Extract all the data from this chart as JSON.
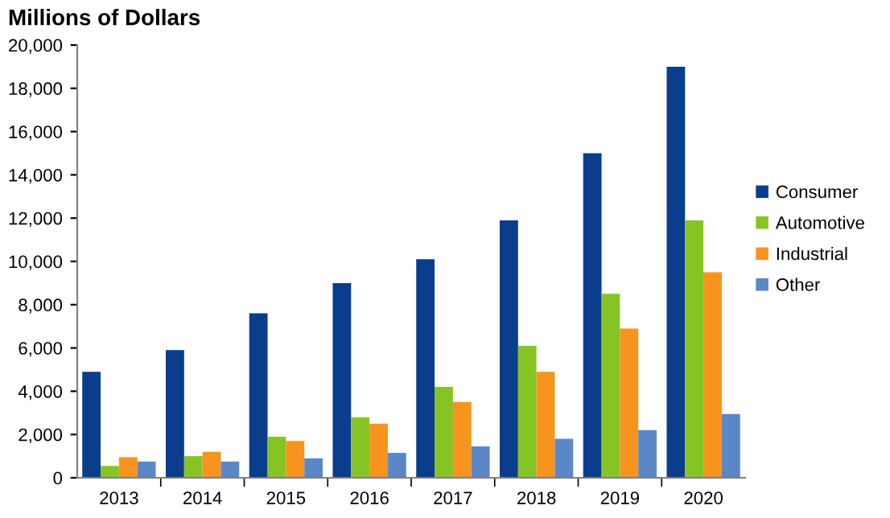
{
  "chart_data": {
    "type": "bar",
    "title": "Millions of Dollars",
    "categories": [
      "2013",
      "2014",
      "2015",
      "2016",
      "2017",
      "2018",
      "2019",
      "2020"
    ],
    "series": [
      {
        "name": "Consumer",
        "color": "#0a3d8c",
        "values": [
          4900,
          5900,
          7600,
          9000,
          10100,
          11900,
          15000,
          19000
        ]
      },
      {
        "name": "Automotive",
        "color": "#86c424",
        "values": [
          550,
          1000,
          1900,
          2800,
          4200,
          6100,
          8500,
          11900
        ]
      },
      {
        "name": "Industrial",
        "color": "#f7941d",
        "values": [
          950,
          1200,
          1700,
          2500,
          3500,
          4900,
          6900,
          9500
        ]
      },
      {
        "name": "Other",
        "color": "#5b87c7",
        "values": [
          750,
          750,
          900,
          1150,
          1450,
          1800,
          2200,
          2950
        ]
      }
    ],
    "ylim": [
      0,
      20000
    ],
    "yticks": [
      0,
      {
        "value": 2000,
        "label": "2,000"
      },
      {
        "value": 4000,
        "label": "4,000"
      },
      {
        "value": 6000,
        "label": "6,000"
      },
      {
        "value": 8000,
        "label": "8,000"
      },
      {
        "value": 10000,
        "label": "10,000"
      },
      {
        "value": 12000,
        "label": "12,000"
      },
      {
        "value": 14000,
        "label": "14,000"
      },
      {
        "value": 16000,
        "label": "16,000"
      },
      {
        "value": 18000,
        "label": "18,000"
      },
      {
        "value": 20000,
        "label": "20,000"
      }
    ],
    "grid": false,
    "legend": "right"
  }
}
